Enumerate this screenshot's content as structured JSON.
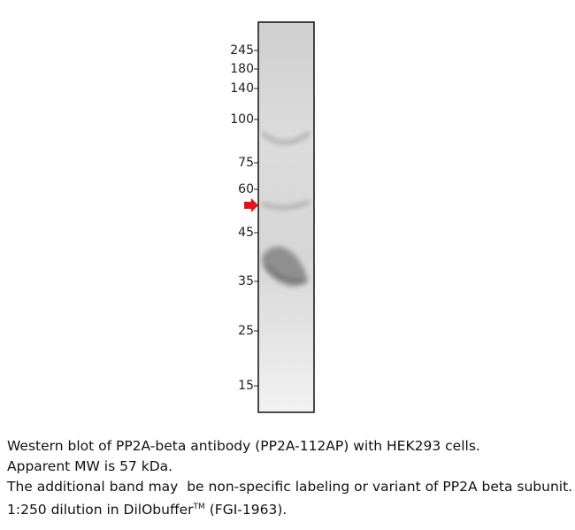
{
  "blot": {
    "markers": [
      "245",
      "180",
      "140",
      "100",
      "75",
      "60",
      "45",
      "35",
      "25",
      "15"
    ]
  },
  "caption": {
    "line1": "Western blot of PP2A-beta antibody (PP2A-112AP) with HEK293 cells.",
    "line2": "Apparent MW is 57 kDa.",
    "line3": "The additional band may  be non-specific labeling or variant of PP2A beta subunit.",
    "line4_start": "1:250 dilution in DilObuffer",
    "line4_sup": "TM",
    "line4_end": " (FGI-1963)."
  }
}
